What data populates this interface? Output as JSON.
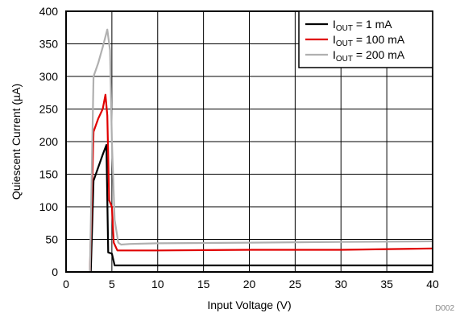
{
  "chart_data": {
    "type": "line",
    "xlabel": "Input Voltage (V)",
    "ylabel": "Quiescent Current (µA)",
    "xlim": [
      0,
      40
    ],
    "ylim": [
      0,
      400
    ],
    "xticks": [
      0,
      5,
      10,
      15,
      20,
      25,
      30,
      35,
      40
    ],
    "yticks": [
      0,
      50,
      100,
      150,
      200,
      250,
      300,
      350,
      400
    ],
    "grid": true,
    "legend_position": "top-right",
    "figure_id": "D002",
    "series": [
      {
        "name": "IOUT = 1 mA",
        "name_main": "I",
        "name_sub": "OUT",
        "name_rest": " = 1 mA",
        "color": "#000000",
        "x": [
          2.7,
          3.0,
          3.5,
          4.0,
          4.4,
          4.6,
          5.0,
          5.3,
          6,
          10,
          20,
          30,
          40
        ],
        "y": [
          0,
          140,
          160,
          180,
          195,
          30,
          28,
          10,
          10,
          10,
          10,
          10,
          10
        ]
      },
      {
        "name": "IOUT = 100 mA",
        "name_main": "I",
        "name_sub": "OUT",
        "name_rest": " = 100 mA",
        "color": "#e00000",
        "x": [
          2.6,
          3.0,
          3.5,
          4.0,
          4.3,
          4.5,
          4.7,
          5.0,
          5.2,
          5.6,
          6,
          10,
          20,
          30,
          40
        ],
        "y": [
          0,
          215,
          235,
          250,
          272,
          240,
          110,
          100,
          45,
          33,
          33,
          33,
          34,
          34,
          36
        ]
      },
      {
        "name": "IOUT = 200 mA",
        "name_main": "I",
        "name_sub": "OUT",
        "name_rest": " = 200 mA",
        "color": "#b0b0b0",
        "x": [
          2.6,
          3.0,
          3.5,
          4.0,
          4.5,
          4.8,
          5.0,
          5.3,
          5.7,
          6.0,
          7,
          10,
          20,
          30,
          40
        ],
        "y": [
          0,
          300,
          320,
          345,
          372,
          340,
          200,
          80,
          45,
          42,
          43,
          44,
          45,
          46,
          47
        ]
      }
    ]
  }
}
